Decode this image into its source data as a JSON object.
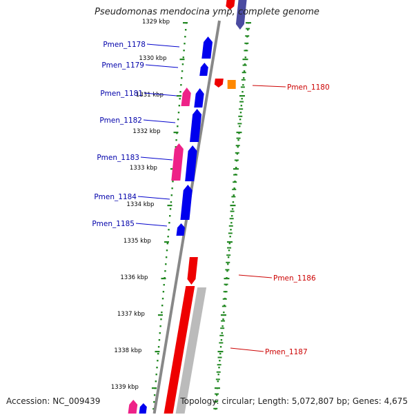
{
  "title": "Pseudomonas mendocina ymp, complete genome",
  "footer": {
    "accession": "Accession: NC_009439",
    "summary": "Topology: circular; Length: 5,072,807 bp; Genes: 4,675"
  },
  "colors": {
    "forward_cds": "#0000ee",
    "reverse_cds": "#ee0000",
    "pink_feature": "#ee2288",
    "orange_feature": "#ff8800",
    "grey_feature": "#bbbbbb",
    "backbone": "#888888",
    "ticks": "#228822",
    "label_forward": "#0000aa",
    "label_reverse": "#cc0000"
  },
  "ticks": [
    "1329 kbp",
    "1330 kbp",
    "1331 kbp",
    "1332 kbp",
    "1333 kbp",
    "1334 kbp",
    "1335 kbp",
    "1336 kbp",
    "1337 kbp",
    "1338 kbp",
    "1339 kbp"
  ],
  "gene_labels": [
    {
      "id": "g1178",
      "text": "Pmen_1178",
      "strand": "forward"
    },
    {
      "id": "g1179",
      "text": "Pmen_1179",
      "strand": "forward"
    },
    {
      "id": "g1181",
      "text": "Pmen_1181",
      "strand": "forward"
    },
    {
      "id": "g1182",
      "text": "Pmen_1182",
      "strand": "forward"
    },
    {
      "id": "g1183",
      "text": "Pmen_1183",
      "strand": "forward"
    },
    {
      "id": "g1184",
      "text": "Pmen_1184",
      "strand": "forward"
    },
    {
      "id": "g1185",
      "text": "Pmen_1185",
      "strand": "forward"
    },
    {
      "id": "g1180",
      "text": "Pmen_1180",
      "strand": "reverse"
    },
    {
      "id": "g1186",
      "text": "Pmen_1186",
      "strand": "reverse"
    },
    {
      "id": "g1187",
      "text": "Pmen_1187",
      "strand": "reverse"
    }
  ]
}
